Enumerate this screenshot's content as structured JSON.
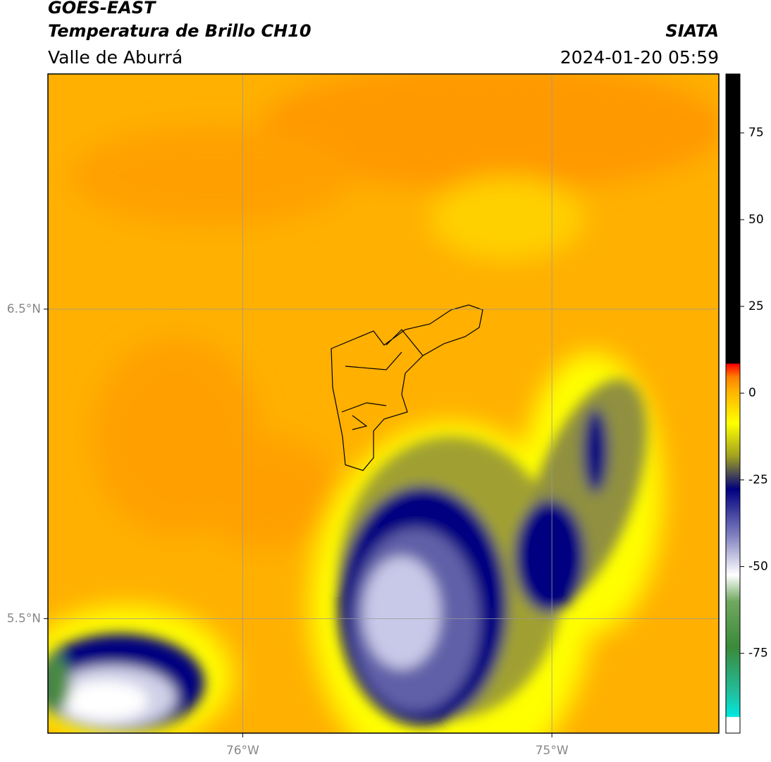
{
  "header": {
    "title": "GOES-EAST",
    "subtitle": "Temperatura de Brillo CH10",
    "region": "Valle de Aburrá",
    "source": "SIATA",
    "datetime": "2024-01-20 05:59"
  },
  "map": {
    "lon_range": [
      -76.63,
      -74.46
    ],
    "lat_range": [
      5.13,
      7.26
    ],
    "lon_ticks": [
      {
        "value": -76,
        "label": "76°W"
      },
      {
        "value": -75,
        "label": "75°W"
      }
    ],
    "lat_ticks": [
      {
        "value": 6.5,
        "label": "6.5°N"
      },
      {
        "value": 5.5,
        "label": "5.5°N"
      }
    ]
  },
  "colorbar": {
    "range": [
      -98,
      92
    ],
    "ticks": [
      75,
      50,
      25,
      0,
      -25,
      -50,
      -75
    ]
  }
}
